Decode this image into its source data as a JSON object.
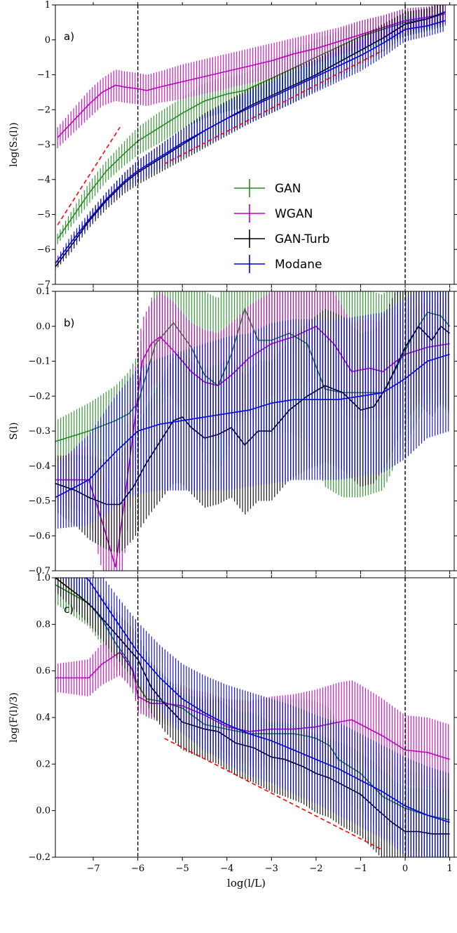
{
  "colors": {
    "GAN": "#228B22",
    "WGAN": "#C000C0",
    "GAN-Turb": "#000000",
    "Modane": "#0000E0",
    "ref": "#FF0000"
  },
  "chart_data": [
    {
      "panel": "a)",
      "type": "line",
      "ylabel": "log(S₂(l))",
      "xlim": [
        -7.85,
        1.1
      ],
      "ylim": [
        -7,
        1
      ],
      "xticks": [
        -7,
        -6,
        -5,
        -4,
        -3,
        -2,
        -1,
        0,
        1
      ],
      "yticks": [
        -7,
        -6,
        -5,
        -4,
        -3,
        -2,
        -1,
        0,
        1
      ],
      "ytick_labels": [
        "−7",
        "−6",
        "−5",
        "−4",
        "−3",
        "−2",
        "−1",
        "0",
        "1"
      ],
      "vlines": [
        -6,
        0
      ],
      "reference_lines": [
        {
          "x": [
            -7.8,
            -6.4
          ],
          "y": [
            -5.3,
            -2.5
          ]
        },
        {
          "x": [
            -5.4,
            -0.5
          ],
          "y": [
            -3.55,
            -0.3
          ]
        }
      ],
      "legend": {
        "position": "center-right",
        "entries": [
          "GAN",
          "WGAN",
          "GAN-Turb",
          "Modane"
        ]
      },
      "series": [
        {
          "name": "GAN",
          "x": [
            -7.8,
            -7.1,
            -6.7,
            -6.3,
            -6.0,
            -5.5,
            -5.0,
            -4.5,
            -4.0,
            -3.6,
            -3.0,
            -2.5,
            -2.0,
            -1.5,
            -1.0,
            -0.5,
            0.0,
            0.5,
            0.9
          ],
          "y": [
            -5.7,
            -4.4,
            -3.75,
            -3.25,
            -2.9,
            -2.5,
            -2.1,
            -1.75,
            -1.55,
            -1.45,
            -1.1,
            -0.8,
            -0.5,
            -0.2,
            0.1,
            0.3,
            0.5,
            0.6,
            0.75
          ],
          "err": [
            0.15,
            0.3,
            0.3,
            0.35,
            0.4,
            0.45,
            0.45,
            0.5,
            0.5,
            0.5,
            0.5,
            0.5,
            0.5,
            0.45,
            0.45,
            0.4,
            0.4,
            0.35,
            0.35
          ]
        },
        {
          "name": "WGAN",
          "x": [
            -7.8,
            -7.1,
            -6.8,
            -6.5,
            -6.3,
            -6.0,
            -5.8,
            -5.5,
            -5.0,
            -4.5,
            -4.0,
            -3.5,
            -3.0,
            -2.5,
            -2.0,
            -1.5,
            -1.0,
            -0.5,
            0.0,
            0.5,
            0.9
          ],
          "y": [
            -2.8,
            -1.85,
            -1.5,
            -1.3,
            -1.35,
            -1.4,
            -1.45,
            -1.35,
            -1.2,
            -1.05,
            -0.9,
            -0.75,
            -0.6,
            -0.4,
            -0.25,
            -0.05,
            0.15,
            0.35,
            0.55,
            0.65,
            0.75
          ],
          "err": [
            0.3,
            0.4,
            0.4,
            0.45,
            0.45,
            0.45,
            0.45,
            0.45,
            0.5,
            0.5,
            0.5,
            0.5,
            0.5,
            0.45,
            0.45,
            0.4,
            0.4,
            0.35,
            0.35,
            0.3,
            0.3
          ]
        },
        {
          "name": "GAN-Turb",
          "x": [
            -7.85,
            -7.5,
            -7.1,
            -6.7,
            -6.3,
            -6.0,
            -5.5,
            -5.0,
            -4.5,
            -4.0,
            -3.5,
            -3.0,
            -2.5,
            -2.0,
            -1.5,
            -1.0,
            -0.5,
            0.0,
            0.5,
            0.9
          ],
          "y": [
            -6.5,
            -5.9,
            -5.2,
            -4.6,
            -4.1,
            -3.8,
            -3.4,
            -3.0,
            -2.6,
            -2.25,
            -1.9,
            -1.6,
            -1.3,
            -1.0,
            -0.65,
            -0.3,
            0.05,
            0.45,
            0.6,
            0.8
          ],
          "err": [
            0.1,
            0.2,
            0.2,
            0.25,
            0.3,
            0.35,
            0.4,
            0.45,
            0.5,
            0.5,
            0.5,
            0.5,
            0.5,
            0.45,
            0.45,
            0.4,
            0.4,
            0.35,
            0.3,
            0.3
          ]
        },
        {
          "name": "Modane",
          "x": [
            -7.85,
            -7.5,
            -7.1,
            -6.7,
            -6.3,
            -6.0,
            -5.5,
            -5.0,
            -4.5,
            -4.0,
            -3.5,
            -3.0,
            -2.5,
            -2.0,
            -1.5,
            -1.0,
            -0.5,
            0.0,
            0.5,
            0.9
          ],
          "y": [
            -6.4,
            -5.8,
            -5.15,
            -4.55,
            -4.05,
            -3.75,
            -3.35,
            -2.95,
            -2.6,
            -2.25,
            -1.95,
            -1.65,
            -1.35,
            -1.05,
            -0.75,
            -0.45,
            -0.1,
            0.3,
            0.4,
            0.55
          ],
          "err": [
            0.1,
            0.2,
            0.2,
            0.2,
            0.25,
            0.3,
            0.35,
            0.4,
            0.45,
            0.45,
            0.45,
            0.45,
            0.45,
            0.45,
            0.45,
            0.45,
            0.4,
            0.35,
            0.3,
            0.3
          ]
        }
      ]
    },
    {
      "panel": "b)",
      "type": "line",
      "ylabel": "S(l)",
      "xlim": [
        -7.85,
        1.1
      ],
      "ylim": [
        -0.7,
        0.1
      ],
      "xticks": [
        -7,
        -6,
        -5,
        -4,
        -3,
        -2,
        -1,
        0,
        1
      ],
      "yticks": [
        -0.7,
        -0.6,
        -0.5,
        -0.4,
        -0.3,
        -0.2,
        -0.1,
        0.0,
        0.1
      ],
      "ytick_labels": [
        "−0.7",
        "−0.6",
        "−0.5",
        "−0.4",
        "−0.3",
        "−0.2",
        "−0.1",
        "0.0",
        "0.1"
      ],
      "vlines": [
        -6,
        0
      ],
      "series": [
        {
          "name": "GAN",
          "x": [
            -7.85,
            -7.1,
            -6.5,
            -6.2,
            -6.0,
            -5.6,
            -5.2,
            -4.8,
            -4.5,
            -4.2,
            -3.9,
            -3.6,
            -3.3,
            -3.0,
            -2.6,
            -2.2,
            -1.8,
            -1.4,
            -1.0,
            -0.5,
            -0.2,
            0.2,
            0.5,
            0.8,
            1.0
          ],
          "y": [
            -0.33,
            -0.3,
            -0.27,
            -0.25,
            -0.22,
            -0.05,
            0.01,
            -0.06,
            -0.14,
            -0.17,
            -0.08,
            0.05,
            -0.04,
            -0.04,
            -0.02,
            -0.05,
            -0.18,
            -0.19,
            -0.19,
            -0.19,
            -0.12,
            -0.02,
            0.04,
            0.03,
            0.0
          ],
          "err": [
            0.06,
            0.08,
            0.1,
            0.12,
            0.14,
            0.18,
            0.2,
            0.22,
            0.24,
            0.25,
            0.25,
            0.26,
            0.26,
            0.27,
            0.28,
            0.28,
            0.28,
            0.3,
            0.3,
            0.28,
            0.27,
            0.27,
            0.26,
            0.26,
            0.25
          ]
        },
        {
          "name": "WGAN",
          "x": [
            -7.85,
            -7.1,
            -6.8,
            -6.5,
            -6.3,
            -6.1,
            -5.9,
            -5.7,
            -5.5,
            -5.2,
            -4.8,
            -4.5,
            -4.2,
            -3.9,
            -3.5,
            -3.0,
            -2.5,
            -2.0,
            -1.6,
            -1.2,
            -0.8,
            -0.5,
            0.0,
            0.5,
            1.0
          ],
          "y": [
            -0.44,
            -0.44,
            -0.56,
            -0.69,
            -0.5,
            -0.3,
            -0.1,
            -0.05,
            -0.03,
            -0.07,
            -0.13,
            -0.16,
            -0.17,
            -0.14,
            -0.09,
            -0.05,
            -0.03,
            0.0,
            -0.05,
            -0.13,
            -0.12,
            -0.13,
            -0.08,
            -0.06,
            -0.05
          ],
          "err": [
            0.06,
            0.1,
            0.14,
            0.18,
            0.16,
            0.14,
            0.12,
            0.12,
            0.13,
            0.14,
            0.14,
            0.15,
            0.15,
            0.15,
            0.15,
            0.15,
            0.15,
            0.15,
            0.15,
            0.14,
            0.14,
            0.14,
            0.13,
            0.13,
            0.13
          ]
        },
        {
          "name": "GAN-Turb",
          "x": [
            -7.85,
            -7.4,
            -7.1,
            -6.7,
            -6.4,
            -6.1,
            -5.8,
            -5.5,
            -5.2,
            -5.0,
            -4.8,
            -4.5,
            -4.2,
            -3.9,
            -3.6,
            -3.3,
            -3.0,
            -2.6,
            -2.2,
            -1.8,
            -1.4,
            -1.0,
            -0.7,
            -0.4,
            0.0,
            0.3,
            0.6,
            0.8,
            1.0
          ],
          "y": [
            -0.45,
            -0.47,
            -0.49,
            -0.51,
            -0.51,
            -0.46,
            -0.39,
            -0.33,
            -0.27,
            -0.26,
            -0.29,
            -0.32,
            -0.31,
            -0.29,
            -0.34,
            -0.3,
            -0.3,
            -0.24,
            -0.2,
            -0.17,
            -0.19,
            -0.24,
            -0.23,
            -0.17,
            -0.06,
            0.0,
            -0.04,
            0.0,
            -0.02
          ],
          "err": [
            0.08,
            0.1,
            0.12,
            0.13,
            0.14,
            0.15,
            0.16,
            0.17,
            0.18,
            0.19,
            0.19,
            0.2,
            0.2,
            0.2,
            0.2,
            0.2,
            0.2,
            0.2,
            0.21,
            0.22,
            0.22,
            0.22,
            0.22,
            0.22,
            0.22,
            0.22,
            0.22,
            0.22,
            0.22
          ]
        },
        {
          "name": "Modane",
          "x": [
            -7.85,
            -7.1,
            -6.5,
            -6.0,
            -5.5,
            -5.0,
            -4.5,
            -4.0,
            -3.5,
            -3.0,
            -2.5,
            -2.0,
            -1.5,
            -1.0,
            -0.5,
            0.0,
            0.5,
            1.0
          ],
          "y": [
            -0.49,
            -0.44,
            -0.36,
            -0.3,
            -0.28,
            -0.27,
            -0.26,
            -0.25,
            -0.24,
            -0.22,
            -0.21,
            -0.21,
            -0.21,
            -0.2,
            -0.19,
            -0.15,
            -0.1,
            -0.08
          ],
          "err": [
            0.09,
            0.13,
            0.16,
            0.18,
            0.19,
            0.2,
            0.21,
            0.22,
            0.22,
            0.23,
            0.23,
            0.23,
            0.23,
            0.23,
            0.23,
            0.23,
            0.22,
            0.22
          ]
        }
      ]
    },
    {
      "panel": "c)",
      "type": "line",
      "ylabel": "log(F(l)/3)",
      "xlabel": "log(l/L)",
      "xlim": [
        -7.85,
        1.1
      ],
      "ylim": [
        -0.2,
        1.0
      ],
      "xticks": [
        -7,
        -6,
        -5,
        -4,
        -3,
        -2,
        -1,
        0,
        1
      ],
      "xtick_labels": [
        "−7",
        "−6",
        "−5",
        "−4",
        "−3",
        "−2",
        "−1",
        "0",
        "1"
      ],
      "yticks": [
        -0.2,
        0.0,
        0.2,
        0.4,
        0.6,
        0.8,
        1.0
      ],
      "ytick_labels": [
        "−0.2",
        "0.0",
        "0.2",
        "0.4",
        "0.6",
        "0.8",
        "1.0"
      ],
      "vlines": [
        -6,
        0
      ],
      "reference_lines": [
        {
          "x": [
            -5.4,
            -0.5
          ],
          "y": [
            0.31,
            -0.17
          ]
        }
      ],
      "series": [
        {
          "name": "GAN",
          "x": [
            -7.85,
            -7.1,
            -6.8,
            -6.5,
            -6.2,
            -6.0,
            -5.8,
            -5.5,
            -5.0,
            -4.5,
            -4.0,
            -3.5,
            -3.0,
            -2.5,
            -2.2,
            -2.0,
            -1.7,
            -1.5,
            -1.0,
            -0.5,
            0.0,
            0.5,
            1.0
          ],
          "y": [
            0.97,
            0.89,
            0.82,
            0.72,
            0.64,
            0.54,
            0.48,
            0.47,
            0.44,
            0.37,
            0.35,
            0.33,
            0.33,
            0.33,
            0.32,
            0.31,
            0.28,
            0.22,
            0.16,
            0.06,
            0.01,
            -0.02,
            -0.04
          ],
          "err": [
            0.08,
            0.1,
            0.11,
            0.11,
            0.1,
            0.08,
            0.08,
            0.09,
            0.1,
            0.12,
            0.13,
            0.14,
            0.15,
            0.15,
            0.16,
            0.16,
            0.16,
            0.16,
            0.16,
            0.17,
            0.17,
            0.17,
            0.17
          ]
        },
        {
          "name": "WGAN",
          "x": [
            -7.85,
            -7.1,
            -6.8,
            -6.4,
            -6.1,
            -6.0,
            -5.7,
            -5.4,
            -5.0,
            -4.5,
            -4.0,
            -3.5,
            -3.0,
            -2.5,
            -2.0,
            -1.5,
            -1.2,
            -1.0,
            -0.5,
            0.0,
            0.5,
            1.0
          ],
          "y": [
            0.57,
            0.57,
            0.63,
            0.68,
            0.6,
            0.49,
            0.46,
            0.46,
            0.45,
            0.41,
            0.36,
            0.34,
            0.35,
            0.35,
            0.36,
            0.38,
            0.39,
            0.37,
            0.32,
            0.26,
            0.25,
            0.22
          ],
          "err": [
            0.06,
            0.08,
            0.09,
            0.1,
            0.08,
            0.07,
            0.06,
            0.07,
            0.08,
            0.1,
            0.12,
            0.13,
            0.14,
            0.15,
            0.16,
            0.17,
            0.17,
            0.17,
            0.16,
            0.15,
            0.15,
            0.15
          ]
        },
        {
          "name": "GAN-Turb",
          "x": [
            -7.85,
            -7.3,
            -7.0,
            -6.5,
            -6.0,
            -5.7,
            -5.4,
            -5.0,
            -4.5,
            -4.2,
            -3.8,
            -3.4,
            -3.0,
            -2.7,
            -2.3,
            -2.0,
            -1.7,
            -1.4,
            -1.0,
            -0.6,
            -0.3,
            0.0,
            0.3,
            0.6,
            1.0
          ],
          "y": [
            1.0,
            0.92,
            0.87,
            0.76,
            0.65,
            0.53,
            0.46,
            0.38,
            0.35,
            0.34,
            0.29,
            0.27,
            0.23,
            0.22,
            0.19,
            0.16,
            0.14,
            0.11,
            0.07,
            0.0,
            -0.05,
            -0.09,
            -0.09,
            -0.1,
            -0.1
          ],
          "err": [
            0.06,
            0.08,
            0.09,
            0.1,
            0.11,
            0.11,
            0.12,
            0.12,
            0.13,
            0.14,
            0.14,
            0.15,
            0.15,
            0.16,
            0.16,
            0.17,
            0.17,
            0.18,
            0.18,
            0.19,
            0.19,
            0.19,
            0.19,
            0.19,
            0.19
          ]
        },
        {
          "name": "Modane",
          "x": [
            -7.85,
            -7.1,
            -6.5,
            -6.0,
            -5.5,
            -5.0,
            -4.5,
            -4.0,
            -3.5,
            -3.0,
            -2.5,
            -2.0,
            -1.5,
            -1.0,
            -0.5,
            0.0,
            0.5,
            1.0
          ],
          "y": [
            1.1,
            0.99,
            0.82,
            0.68,
            0.57,
            0.48,
            0.42,
            0.37,
            0.33,
            0.3,
            0.26,
            0.22,
            0.18,
            0.13,
            0.08,
            0.02,
            -0.02,
            -0.05
          ],
          "err": [
            0.08,
            0.1,
            0.11,
            0.13,
            0.14,
            0.15,
            0.16,
            0.17,
            0.18,
            0.18,
            0.19,
            0.19,
            0.2,
            0.2,
            0.2,
            0.21,
            0.21,
            0.21
          ]
        }
      ]
    }
  ]
}
